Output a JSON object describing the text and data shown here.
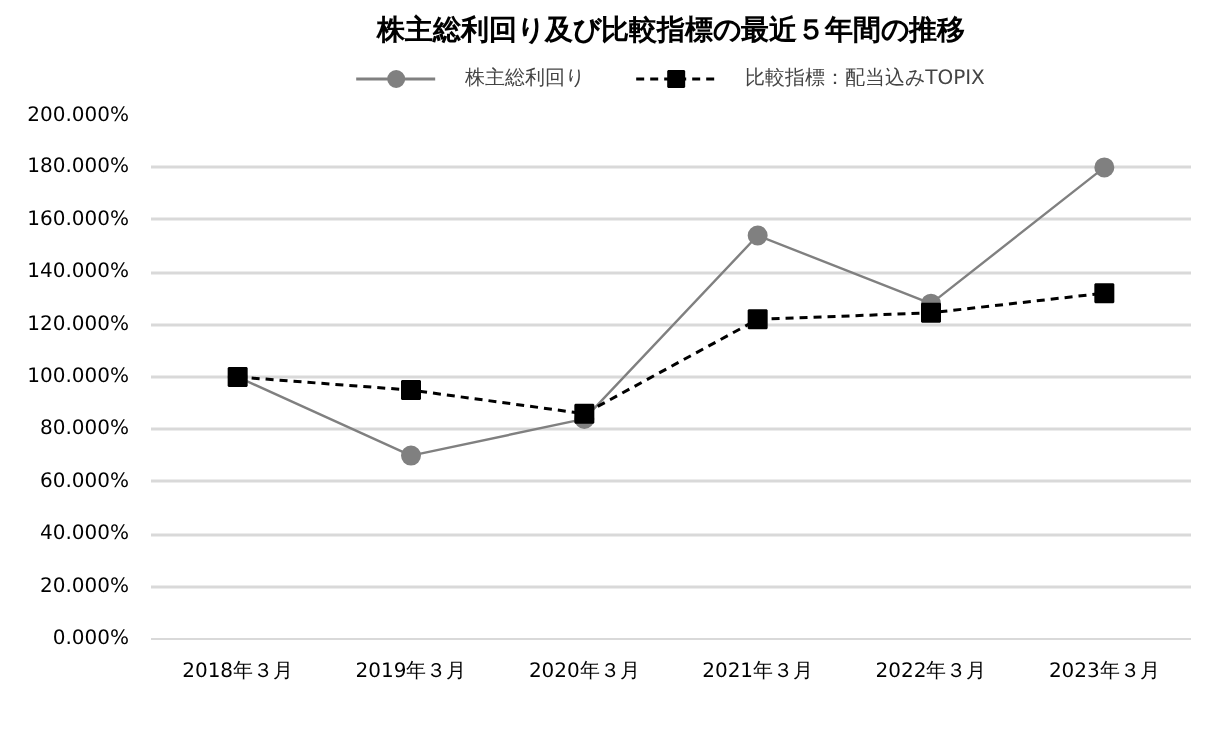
{
  "chart_data": {
    "type": "line",
    "title": "株主総利回り及び比較指標の最近５年間の推移",
    "categories": [
      "2018年３月",
      "2019年３月",
      "2020年３月",
      "2021年３月",
      "2022年３月",
      "2023年３月"
    ],
    "series": [
      {
        "name": "株主総利回り",
        "color": "#808080",
        "marker": "circle",
        "line_style": "solid",
        "values": [
          100,
          70,
          84,
          154,
          128,
          180
        ]
      },
      {
        "name": "比較指標：配当込みTOPIX",
        "color": "#000000",
        "marker": "square",
        "line_style": "dashed",
        "values": [
          100,
          95,
          86,
          122,
          124.5,
          132
        ]
      }
    ],
    "ylim": [
      0,
      200
    ],
    "yticks": [
      {
        "value": 0,
        "label": "0.000%"
      },
      {
        "value": 20,
        "label": "20.000%"
      },
      {
        "value": 40,
        "label": "40.000%"
      },
      {
        "value": 60,
        "label": "60.000%"
      },
      {
        "value": 80,
        "label": "80.000%"
      },
      {
        "value": 100,
        "label": "100.000%"
      },
      {
        "value": 120,
        "label": "120.000%"
      },
      {
        "value": 140,
        "label": "140.000%"
      },
      {
        "value": 160,
        "label": "160.000%"
      },
      {
        "value": 180,
        "label": "180.000%"
      },
      {
        "value": 200,
        "label": "200.000%"
      }
    ],
    "grid": "y",
    "legend": "top"
  }
}
